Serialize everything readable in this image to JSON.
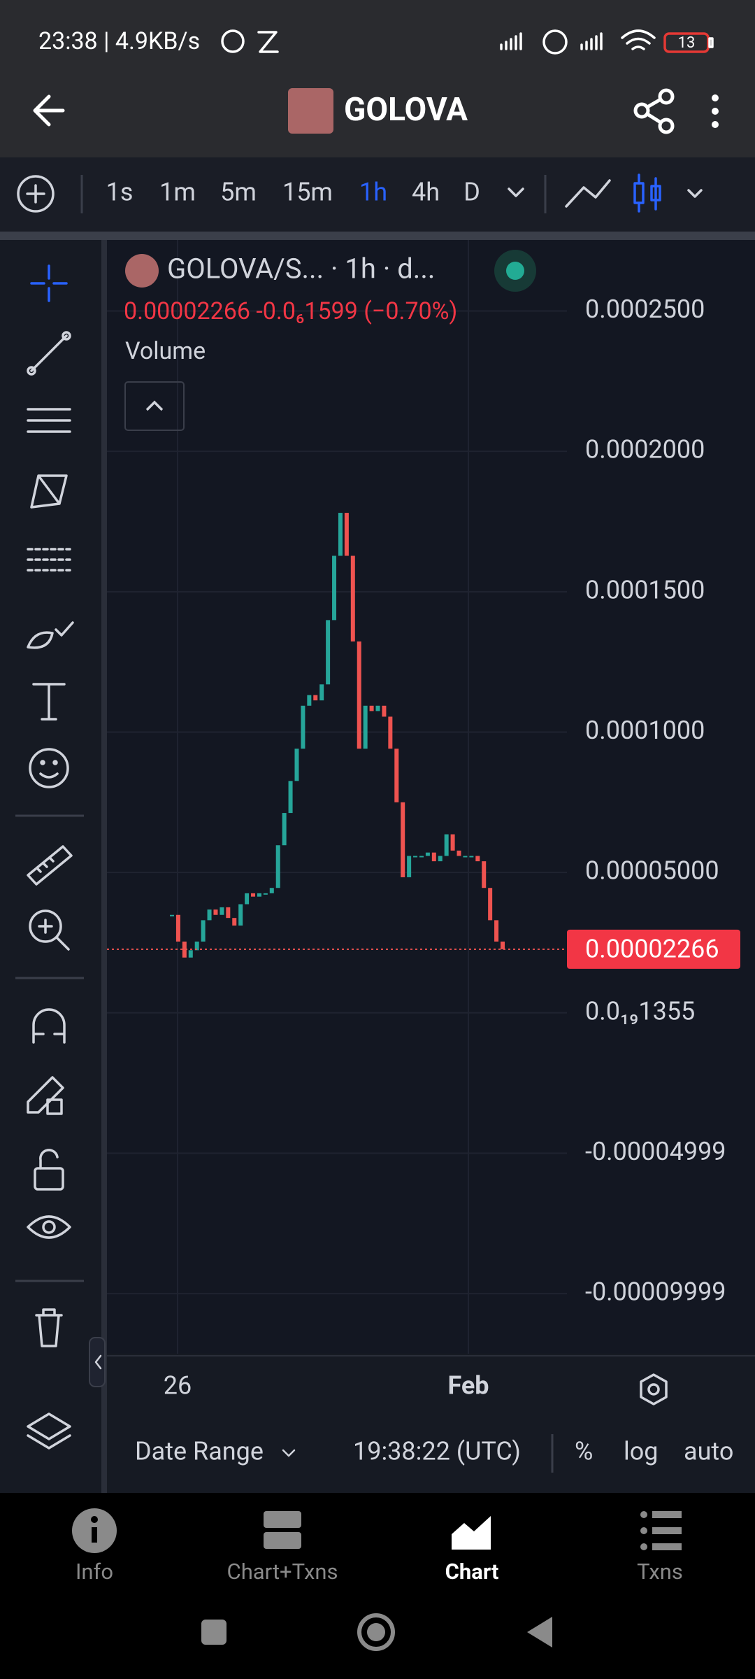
{
  "status_bar": {
    "time_speed": "23:38 | 4.9KB/s",
    "battery": "13"
  },
  "header": {
    "title": "GOLOVA"
  },
  "timeframes": [
    "1s",
    "1m",
    "5m",
    "15m",
    "1h",
    "4h",
    "D"
  ],
  "legend": {
    "symbol": "GOLOVA/S... · 1h · d...",
    "price_change": "0.00002266  -0.0₆1599 (−0.70%)",
    "volume": "Volume"
  },
  "chart_data": {
    "type": "candle-close",
    "values": [
      3.49e-05,
      2.54e-05,
      1.97e-05,
      2.23e-05,
      2.54e-05,
      3.3e-05,
      3.68e-05,
      3.49e-05,
      3.76e-05,
      3.38e-05,
      3.11e-05,
      3.87e-05,
      4.26e-05,
      4.14e-05,
      4.26e-05,
      4.26e-05,
      4.45e-05,
      5.97e-05,
      7.12e-05,
      8.26e-05,
      9.41e-05,
      0.0001094,
      0.0001132,
      0.0001113,
      0.000117,
      0.0001399,
      0.0001628,
      0.0001781,
      0.0001628,
      0.0001323,
      9.41e-05,
      0.0001094,
      0.0001075,
      0.0001094,
      0.0001055,
      9.41e-05,
      7.5e-05,
      4.83e-05,
      5.59e-05,
      5.59e-05,
      5.59e-05,
      5.71e-05,
      5.4e-05,
      5.59e-05,
      6.36e-05,
      5.78e-05,
      5.59e-05,
      5.59e-05,
      5.59e-05,
      5.4e-05,
      4.45e-05,
      3.3e-05,
      2.54e-05,
      2.266e-05
    ],
    "up_color": "#26a69a",
    "down_color": "#ef5350",
    "ylim": [
      -0.0001214,
      0.0002753
    ],
    "yticks": [
      {
        "value": 0.00025,
        "label": "0.0002500"
      },
      {
        "value": 0.0002,
        "label": "0.0002000"
      },
      {
        "value": 0.00015,
        "label": "0.0001500"
      },
      {
        "value": 0.0001,
        "label": "0.0001000"
      },
      {
        "value": 5e-05,
        "label": "0.00005000"
      },
      {
        "value": 1.355e-20,
        "label": "0.0₁₉1355"
      },
      {
        "value": -4.999e-05,
        "label": "-0.00004999"
      },
      {
        "value": -9.999e-05,
        "label": "-0.00009999"
      }
    ],
    "xticks": [
      "26",
      "Feb"
    ],
    "last_price": 2.266e-05,
    "grid": true
  },
  "bottom_bar": {
    "date_range": "Date Range",
    "time": "19:38:22 (UTC)",
    "percent": "%",
    "log": "log",
    "auto": "auto"
  },
  "nav": [
    "Info",
    "Chart+Txns",
    "Chart",
    "Txns"
  ]
}
